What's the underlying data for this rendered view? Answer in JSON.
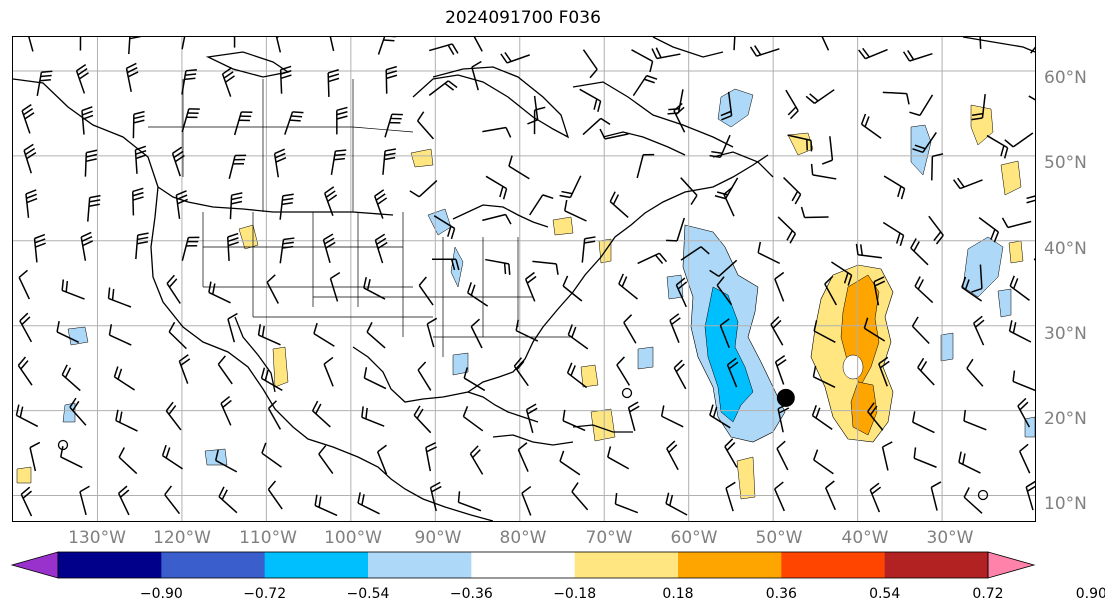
{
  "title": "2024091700 F036",
  "lat_labels": [
    "60°N",
    "50°N",
    "40°N",
    "30°N",
    "20°N",
    "10°N"
  ],
  "lon_labels": [
    "130°W",
    "120°W",
    "110°W",
    "100°W",
    "90°W",
    "80°W",
    "70°W",
    "60°W",
    "50°W",
    "40°W",
    "30°W"
  ],
  "colorbar": {
    "ticks": [
      "−0.90",
      "−0.72",
      "−0.54",
      "−0.36",
      "−0.18",
      "0.18",
      "0.36",
      "0.54",
      "0.72",
      "0.90"
    ],
    "colors": [
      "#9932cc",
      "#00008b",
      "#3a5fcd",
      "#00bfff",
      "#add8f7",
      "#ffffff",
      "#ffe680",
      "#ffa500",
      "#ff4500",
      "#b22222",
      "#ff82ab"
    ]
  },
  "colors": {
    "light_blue": "#add8f7",
    "blue": "#00bfff",
    "yellow": "#ffe680",
    "orange": "#ffa500",
    "grid": "#b0b0b0",
    "coast": "#000000"
  },
  "map": {
    "lon_range": [
      -140,
      -19
    ],
    "lat_range": [
      7,
      64
    ],
    "projection": "plate-carree",
    "storm_marker": {
      "lon": -48.5,
      "lat": 21.5
    }
  }
}
